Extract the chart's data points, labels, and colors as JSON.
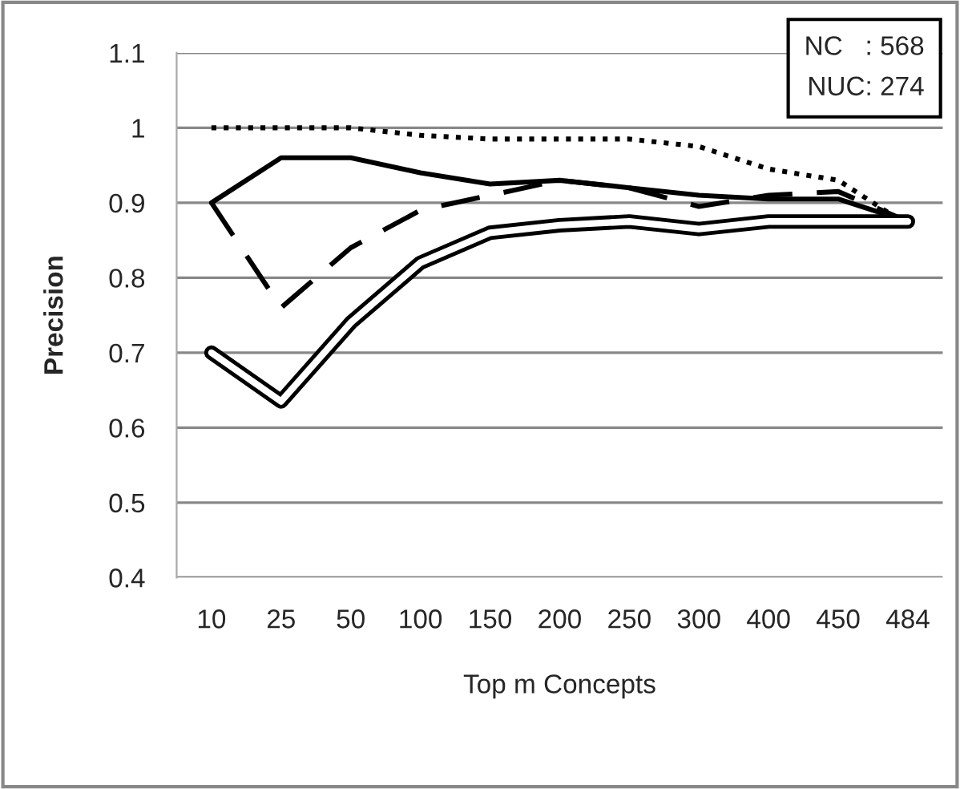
{
  "chart_data": {
    "type": "line",
    "xlabel": "Top m Concepts",
    "ylabel": "Precision",
    "categories": [
      "10",
      "25",
      "50",
      "100",
      "150",
      "200",
      "250",
      "300",
      "400",
      "450",
      "484"
    ],
    "series": [
      {
        "color": "#000000",
        "line_style": "dotted",
        "values": [
          1.0,
          1.0,
          1.0,
          0.99,
          0.985,
          0.985,
          0.985,
          0.975,
          0.945,
          0.93,
          0.87
        ]
      },
      {
        "color": "#000000",
        "line_style": "solid",
        "values": [
          0.9,
          0.96,
          0.96,
          0.94,
          0.925,
          0.93,
          0.92,
          0.91,
          0.905,
          0.905,
          0.875
        ]
      },
      {
        "color": "#000000",
        "line_style": "dashed",
        "values": [
          0.9,
          0.76,
          0.84,
          0.89,
          0.91,
          0.93,
          0.92,
          0.895,
          0.91,
          0.915,
          0.875
        ]
      },
      {
        "color": "#000000",
        "line_style": "solid",
        "values": [
          0.7,
          0.635,
          0.74,
          0.82,
          0.86,
          0.87,
          0.875,
          0.865,
          0.875,
          0.875,
          0.875
        ]
      }
    ],
    "ylim": [
      0.4,
      1.1
    ],
    "yticks": [
      0.4,
      0.5,
      0.6,
      0.7,
      0.8,
      0.9,
      {
        "value": 1.0,
        "label": "1"
      },
      1.1
    ],
    "grid": "y",
    "marker": "none",
    "annotations": [
      "NC   : 568\nNUC: 274"
    ]
  }
}
